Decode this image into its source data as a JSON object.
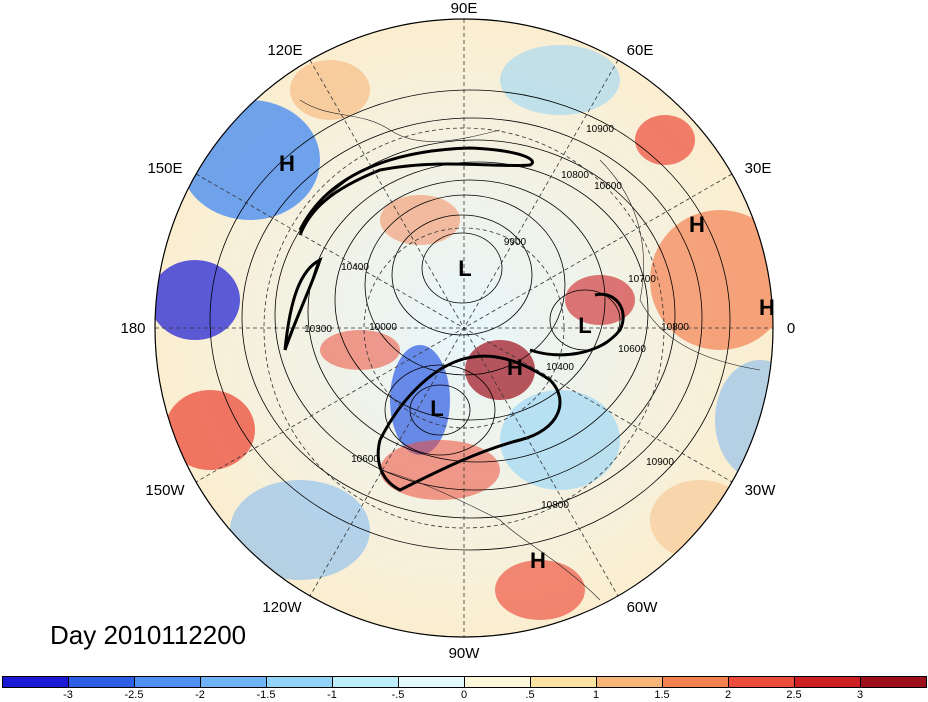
{
  "title": "Day 2010112200",
  "map": {
    "projection": "north polar stereographic",
    "longitude_labels": [
      "90E",
      "60E",
      "30E",
      "0",
      "30W",
      "60W",
      "90W",
      "120W",
      "150W",
      "180",
      "150E",
      "120E"
    ],
    "pressure_centers": [
      "H",
      "H",
      "H",
      "H",
      "H",
      "L",
      "L",
      "L"
    ],
    "contour_labels": [
      "10900",
      "10800",
      "10600",
      "10400",
      "10300",
      "10000",
      "9900",
      "10700",
      "10800",
      "10600",
      "10400",
      "10900",
      "10800",
      "10600"
    ]
  },
  "colorbar": {
    "tick_labels": [
      "-3",
      "-2.5",
      "-2",
      "-1.5",
      "-1",
      "-.5",
      "0",
      ".5",
      "1",
      "1.5",
      "2",
      "2.5",
      "3"
    ],
    "colors": [
      "#1a1ad6",
      "#2e5de6",
      "#4e8ff0",
      "#6fb2f5",
      "#93d3f8",
      "#bdeefa",
      "#e3f8fb",
      "#fbf7d8",
      "#fae2a2",
      "#f7b57a",
      "#f38252",
      "#ec4c3b",
      "#cc2024",
      "#9e0f1c"
    ]
  }
}
